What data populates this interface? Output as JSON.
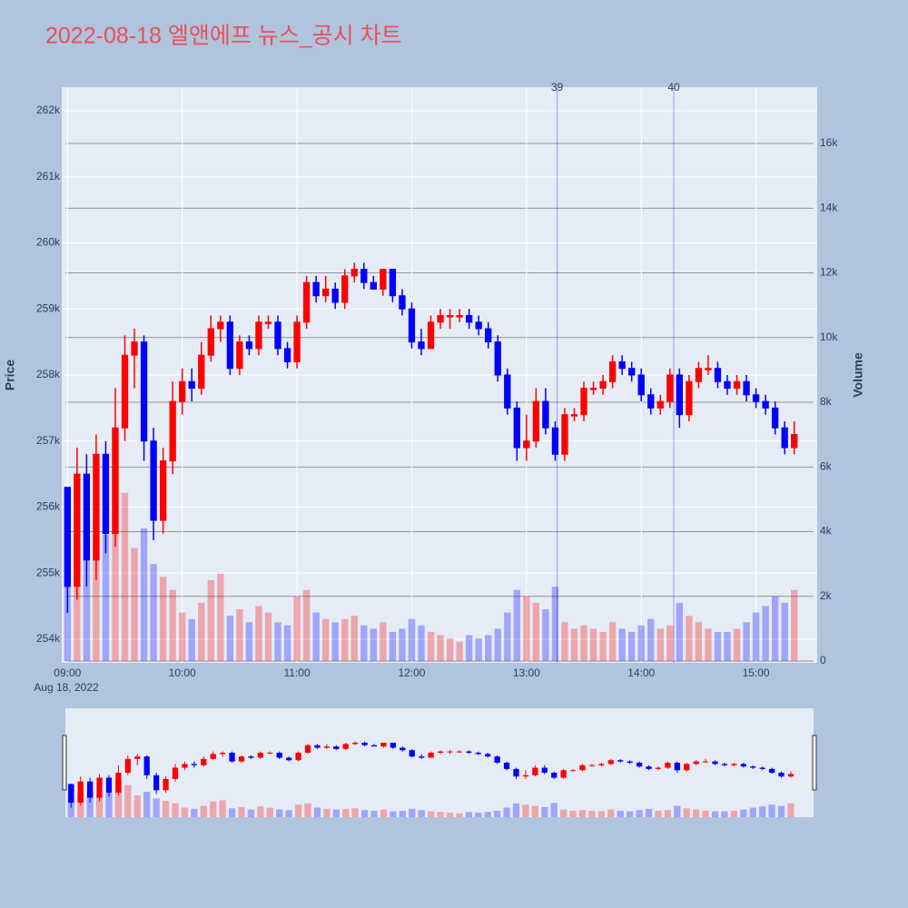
{
  "chart_data": {
    "type": "candlestick",
    "title": "2022-08-18 엘앤에프 뉴스_공시 차트",
    "x": [
      "09:00",
      "09:05",
      "09:10",
      "09:15",
      "09:20",
      "09:25",
      "09:30",
      "09:35",
      "09:40",
      "09:45",
      "09:50",
      "09:55",
      "10:00",
      "10:05",
      "10:10",
      "10:15",
      "10:20",
      "10:25",
      "10:30",
      "10:35",
      "10:40",
      "10:45",
      "10:50",
      "10:55",
      "11:00",
      "11:05",
      "11:10",
      "11:15",
      "11:20",
      "11:25",
      "11:30",
      "11:35",
      "11:40",
      "11:45",
      "11:50",
      "11:55",
      "12:00",
      "12:05",
      "12:10",
      "12:15",
      "12:20",
      "12:25",
      "12:30",
      "12:35",
      "12:40",
      "12:45",
      "12:50",
      "12:55",
      "13:00",
      "13:05",
      "13:10",
      "13:15",
      "13:20",
      "13:25",
      "13:30",
      "13:35",
      "13:40",
      "13:45",
      "13:50",
      "13:55",
      "14:00",
      "14:05",
      "14:10",
      "14:15",
      "14:20",
      "14:25",
      "14:30",
      "14:35",
      "14:40",
      "14:45",
      "14:50",
      "14:55",
      "15:00",
      "15:05",
      "15:10",
      "15:15",
      "15:20"
    ],
    "date_label": "Aug 18, 2022",
    "open": [
      256300,
      254800,
      256500,
      255200,
      256800,
      255600,
      257200,
      258300,
      258500,
      257000,
      255800,
      256700,
      257600,
      257900,
      257800,
      258300,
      258700,
      258800,
      258100,
      258500,
      258400,
      258800,
      258800,
      258400,
      258200,
      258800,
      259400,
      259200,
      259300,
      259100,
      259500,
      259600,
      259400,
      259300,
      259600,
      259200,
      259000,
      258500,
      258400,
      258800,
      258900,
      258900,
      258900,
      258800,
      258700,
      258500,
      258000,
      257500,
      256900,
      257000,
      257600,
      257200,
      256800,
      257400,
      257400,
      257800,
      257800,
      257900,
      258200,
      258100,
      258000,
      257700,
      257500,
      257600,
      258000,
      257400,
      257900,
      258100,
      258100,
      257900,
      257800,
      257900,
      257700,
      257600,
      257500,
      257200,
      256900
    ],
    "high": [
      256300,
      256900,
      256800,
      257100,
      257000,
      257800,
      258600,
      258700,
      258600,
      257200,
      256900,
      257900,
      258100,
      258100,
      258500,
      258900,
      258900,
      258900,
      258600,
      258600,
      258900,
      258900,
      258900,
      258500,
      258900,
      259500,
      259500,
      259500,
      259400,
      259600,
      259700,
      259700,
      259500,
      259600,
      259600,
      259300,
      259100,
      258700,
      258900,
      259000,
      259000,
      259000,
      259000,
      258900,
      258800,
      258600,
      258100,
      257600,
      257400,
      257800,
      257800,
      257300,
      257500,
      257500,
      257900,
      257900,
      258000,
      258300,
      258300,
      258200,
      258100,
      257800,
      257700,
      258100,
      258100,
      258000,
      258200,
      258300,
      258200,
      258000,
      258000,
      258000,
      257800,
      257700,
      257600,
      257300,
      257300
    ],
    "low": [
      254400,
      254600,
      254800,
      254900,
      255300,
      255400,
      257000,
      257800,
      256700,
      255500,
      255600,
      256500,
      257400,
      257600,
      257700,
      258200,
      258500,
      258000,
      258000,
      258300,
      258300,
      258700,
      258300,
      258100,
      258100,
      258700,
      259100,
      259100,
      259000,
      259000,
      259400,
      259300,
      259300,
      259200,
      259100,
      258900,
      258400,
      258300,
      258400,
      258700,
      258700,
      258800,
      258700,
      258600,
      258400,
      257900,
      257400,
      256700,
      256700,
      256900,
      257100,
      256700,
      256700,
      257300,
      257300,
      257700,
      257700,
      257800,
      258000,
      257900,
      257600,
      257400,
      257400,
      257500,
      257200,
      257300,
      257800,
      258000,
      257800,
      257700,
      257700,
      257600,
      257500,
      257400,
      257100,
      256800,
      256800
    ],
    "close": [
      254800,
      256500,
      255200,
      256800,
      255600,
      257200,
      258300,
      258500,
      257000,
      255800,
      256700,
      257600,
      257900,
      257800,
      258300,
      258700,
      258800,
      258100,
      258500,
      258400,
      258800,
      258800,
      258400,
      258200,
      258800,
      259400,
      259200,
      259300,
      259100,
      259500,
      259600,
      259400,
      259300,
      259600,
      259200,
      259000,
      258500,
      258400,
      258800,
      258900,
      258900,
      258900,
      258800,
      258700,
      258500,
      258000,
      257500,
      256900,
      257000,
      257600,
      257200,
      256800,
      257400,
      257400,
      257800,
      257800,
      257900,
      258200,
      258100,
      258000,
      257700,
      257500,
      257600,
      258000,
      257400,
      257900,
      258100,
      258100,
      257900,
      257800,
      257900,
      257700,
      257600,
      257500,
      257200,
      256900,
      257100
    ],
    "volume": [
      5200,
      3800,
      4200,
      3500,
      3900,
      6000,
      5200,
      3500,
      4100,
      3000,
      2600,
      2200,
      1500,
      1300,
      1800,
      2500,
      2700,
      1400,
      1600,
      1200,
      1700,
      1500,
      1200,
      1100,
      2000,
      2200,
      1500,
      1300,
      1200,
      1300,
      1400,
      1100,
      1000,
      1200,
      900,
      1000,
      1300,
      1100,
      900,
      800,
      700,
      600,
      800,
      700,
      800,
      1000,
      1500,
      2200,
      2000,
      1800,
      1600,
      2300,
      1200,
      1000,
      1100,
      1000,
      900,
      1200,
      1000,
      900,
      1100,
      1300,
      1000,
      1100,
      1800,
      1400,
      1200,
      1000,
      900,
      900,
      1000,
      1200,
      1500,
      1700,
      2000,
      1800,
      2200
    ],
    "increasing_color": "#ff0000",
    "decreasing_color": "#0000ff",
    "xlim": [
      "08:57",
      "15:32"
    ],
    "xticks": [
      "09:00",
      "10:00",
      "11:00",
      "12:00",
      "13:00",
      "14:00",
      "15:00"
    ],
    "ylim": [
      253643,
      262357
    ],
    "yticks": [
      {
        "value": 254000,
        "label": "254k"
      },
      {
        "value": 255000,
        "label": "255k"
      },
      {
        "value": 256000,
        "label": "256k"
      },
      {
        "value": 257000,
        "label": "257k"
      },
      {
        "value": 258000,
        "label": "258k"
      },
      {
        "value": 259000,
        "label": "259k"
      },
      {
        "value": 260000,
        "label": "260k"
      },
      {
        "value": 261000,
        "label": "261k"
      },
      {
        "value": 262000,
        "label": "262k"
      }
    ],
    "y2lim": [
      -56,
      17740
    ],
    "y2ticks": [
      0,
      {
        "value": 2000,
        "label": "2k"
      },
      {
        "value": 4000,
        "label": "4k"
      },
      {
        "value": 6000,
        "label": "6k"
      },
      {
        "value": 8000,
        "label": "8k"
      },
      {
        "value": 10000,
        "label": "10k"
      },
      {
        "value": 12000,
        "label": "12k"
      },
      {
        "value": 14000,
        "label": "14k"
      },
      {
        "value": 16000,
        "label": "16k"
      }
    ],
    "y_title": "Price",
    "y2_title": "Volume",
    "annotations": [
      {
        "x": "13:16",
        "text": "39"
      },
      {
        "x": "14:17",
        "text": "40"
      }
    ],
    "grid": true,
    "rangeslider": true
  }
}
